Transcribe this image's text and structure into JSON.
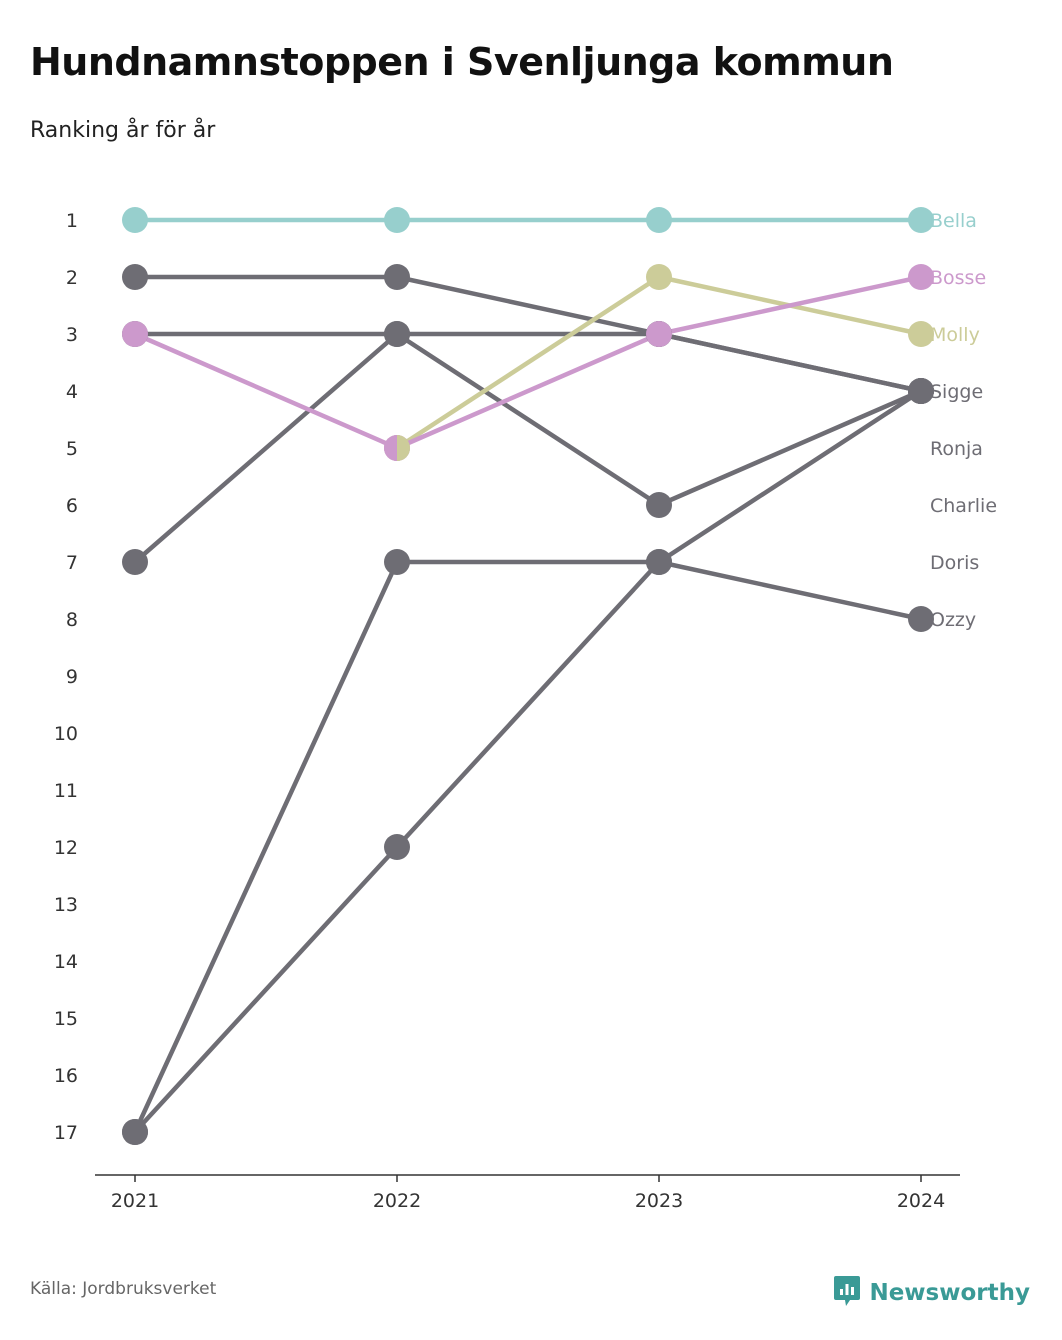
{
  "title": "Hundnamnstoppen i Svenljunga kommun",
  "subtitle": "Ranking år för år",
  "source": "Källa: Jordbruksverket",
  "brand": {
    "name": "Newsworthy",
    "icon": "newsworthy-logo-icon",
    "color": "#3a9a96"
  },
  "colors": {
    "grey": "#6e6d74",
    "Bella": "#97cfcd",
    "Bosse": "#cc99cc",
    "Molly": "#cccc99",
    "axis": "#333333"
  },
  "chart_data": {
    "type": "line",
    "x": [
      "2021",
      "2022",
      "2023",
      "2024"
    ],
    "y_ticks": [
      1,
      2,
      3,
      4,
      5,
      6,
      7,
      8,
      9,
      10,
      11,
      12,
      13,
      14,
      15,
      16,
      17
    ],
    "ylim": [
      1,
      17
    ],
    "y_reversed": true,
    "grid": false,
    "legend": "none; series names printed at the right end of each line",
    "series": [
      {
        "name": "Ozzy",
        "values": [
          17,
          7,
          7,
          8
        ],
        "color": "#6e6d74"
      },
      {
        "name": "Doris",
        "values": [
          7,
          3,
          6,
          4
        ],
        "color": "#6e6d74"
      },
      {
        "name": "Charlie",
        "values": [
          17,
          12,
          7,
          4
        ],
        "color": "#6e6d74"
      },
      {
        "name": "Ronja",
        "values": [
          3,
          3,
          3,
          4
        ],
        "color": "#6e6d74"
      },
      {
        "name": "Sigge",
        "values": [
          2,
          2,
          3,
          4
        ],
        "color": "#6e6d74"
      },
      {
        "name": "Molly",
        "values": [
          null,
          5,
          2,
          3
        ],
        "color": "#cccc99"
      },
      {
        "name": "Bosse",
        "values": [
          3,
          5,
          3,
          2
        ],
        "color": "#cc99cc"
      },
      {
        "name": "Bella",
        "values": [
          1,
          1,
          1,
          1
        ],
        "color": "#97cfcd"
      }
    ],
    "end_labels": [
      "Bella",
      "Bosse",
      "Molly",
      "Sigge",
      "Ronja",
      "Charlie",
      "Doris",
      "Ozzy"
    ]
  }
}
